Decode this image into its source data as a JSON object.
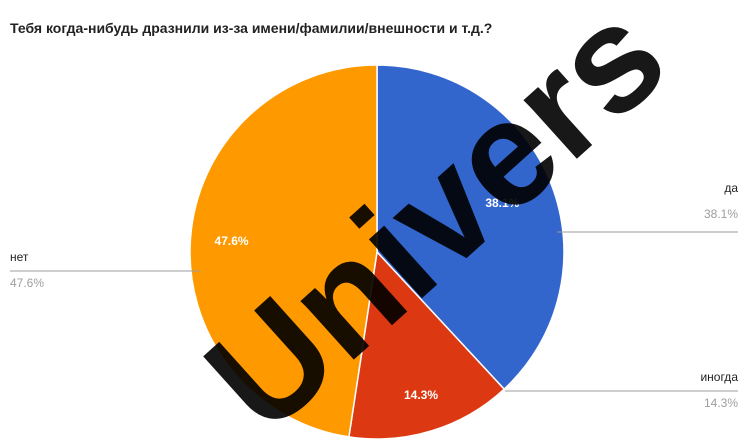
{
  "chart_data": {
    "type": "pie",
    "title": "Тебя когда-нибудь дразнили из-за имени/фамилии/внешности и т.д.?",
    "slices": [
      {
        "label": "да",
        "value": 38.1,
        "value_label": "38.1%",
        "color": "#3366cc"
      },
      {
        "label": "иногда",
        "value": 14.3,
        "value_label": "14.3%",
        "color": "#dc3912"
      },
      {
        "label": "нет",
        "value": 47.6,
        "value_label": "47.6%",
        "color": "#ff9900"
      }
    ],
    "legend": "side labels with leader lines"
  },
  "watermark": {
    "text": "Univers"
  }
}
